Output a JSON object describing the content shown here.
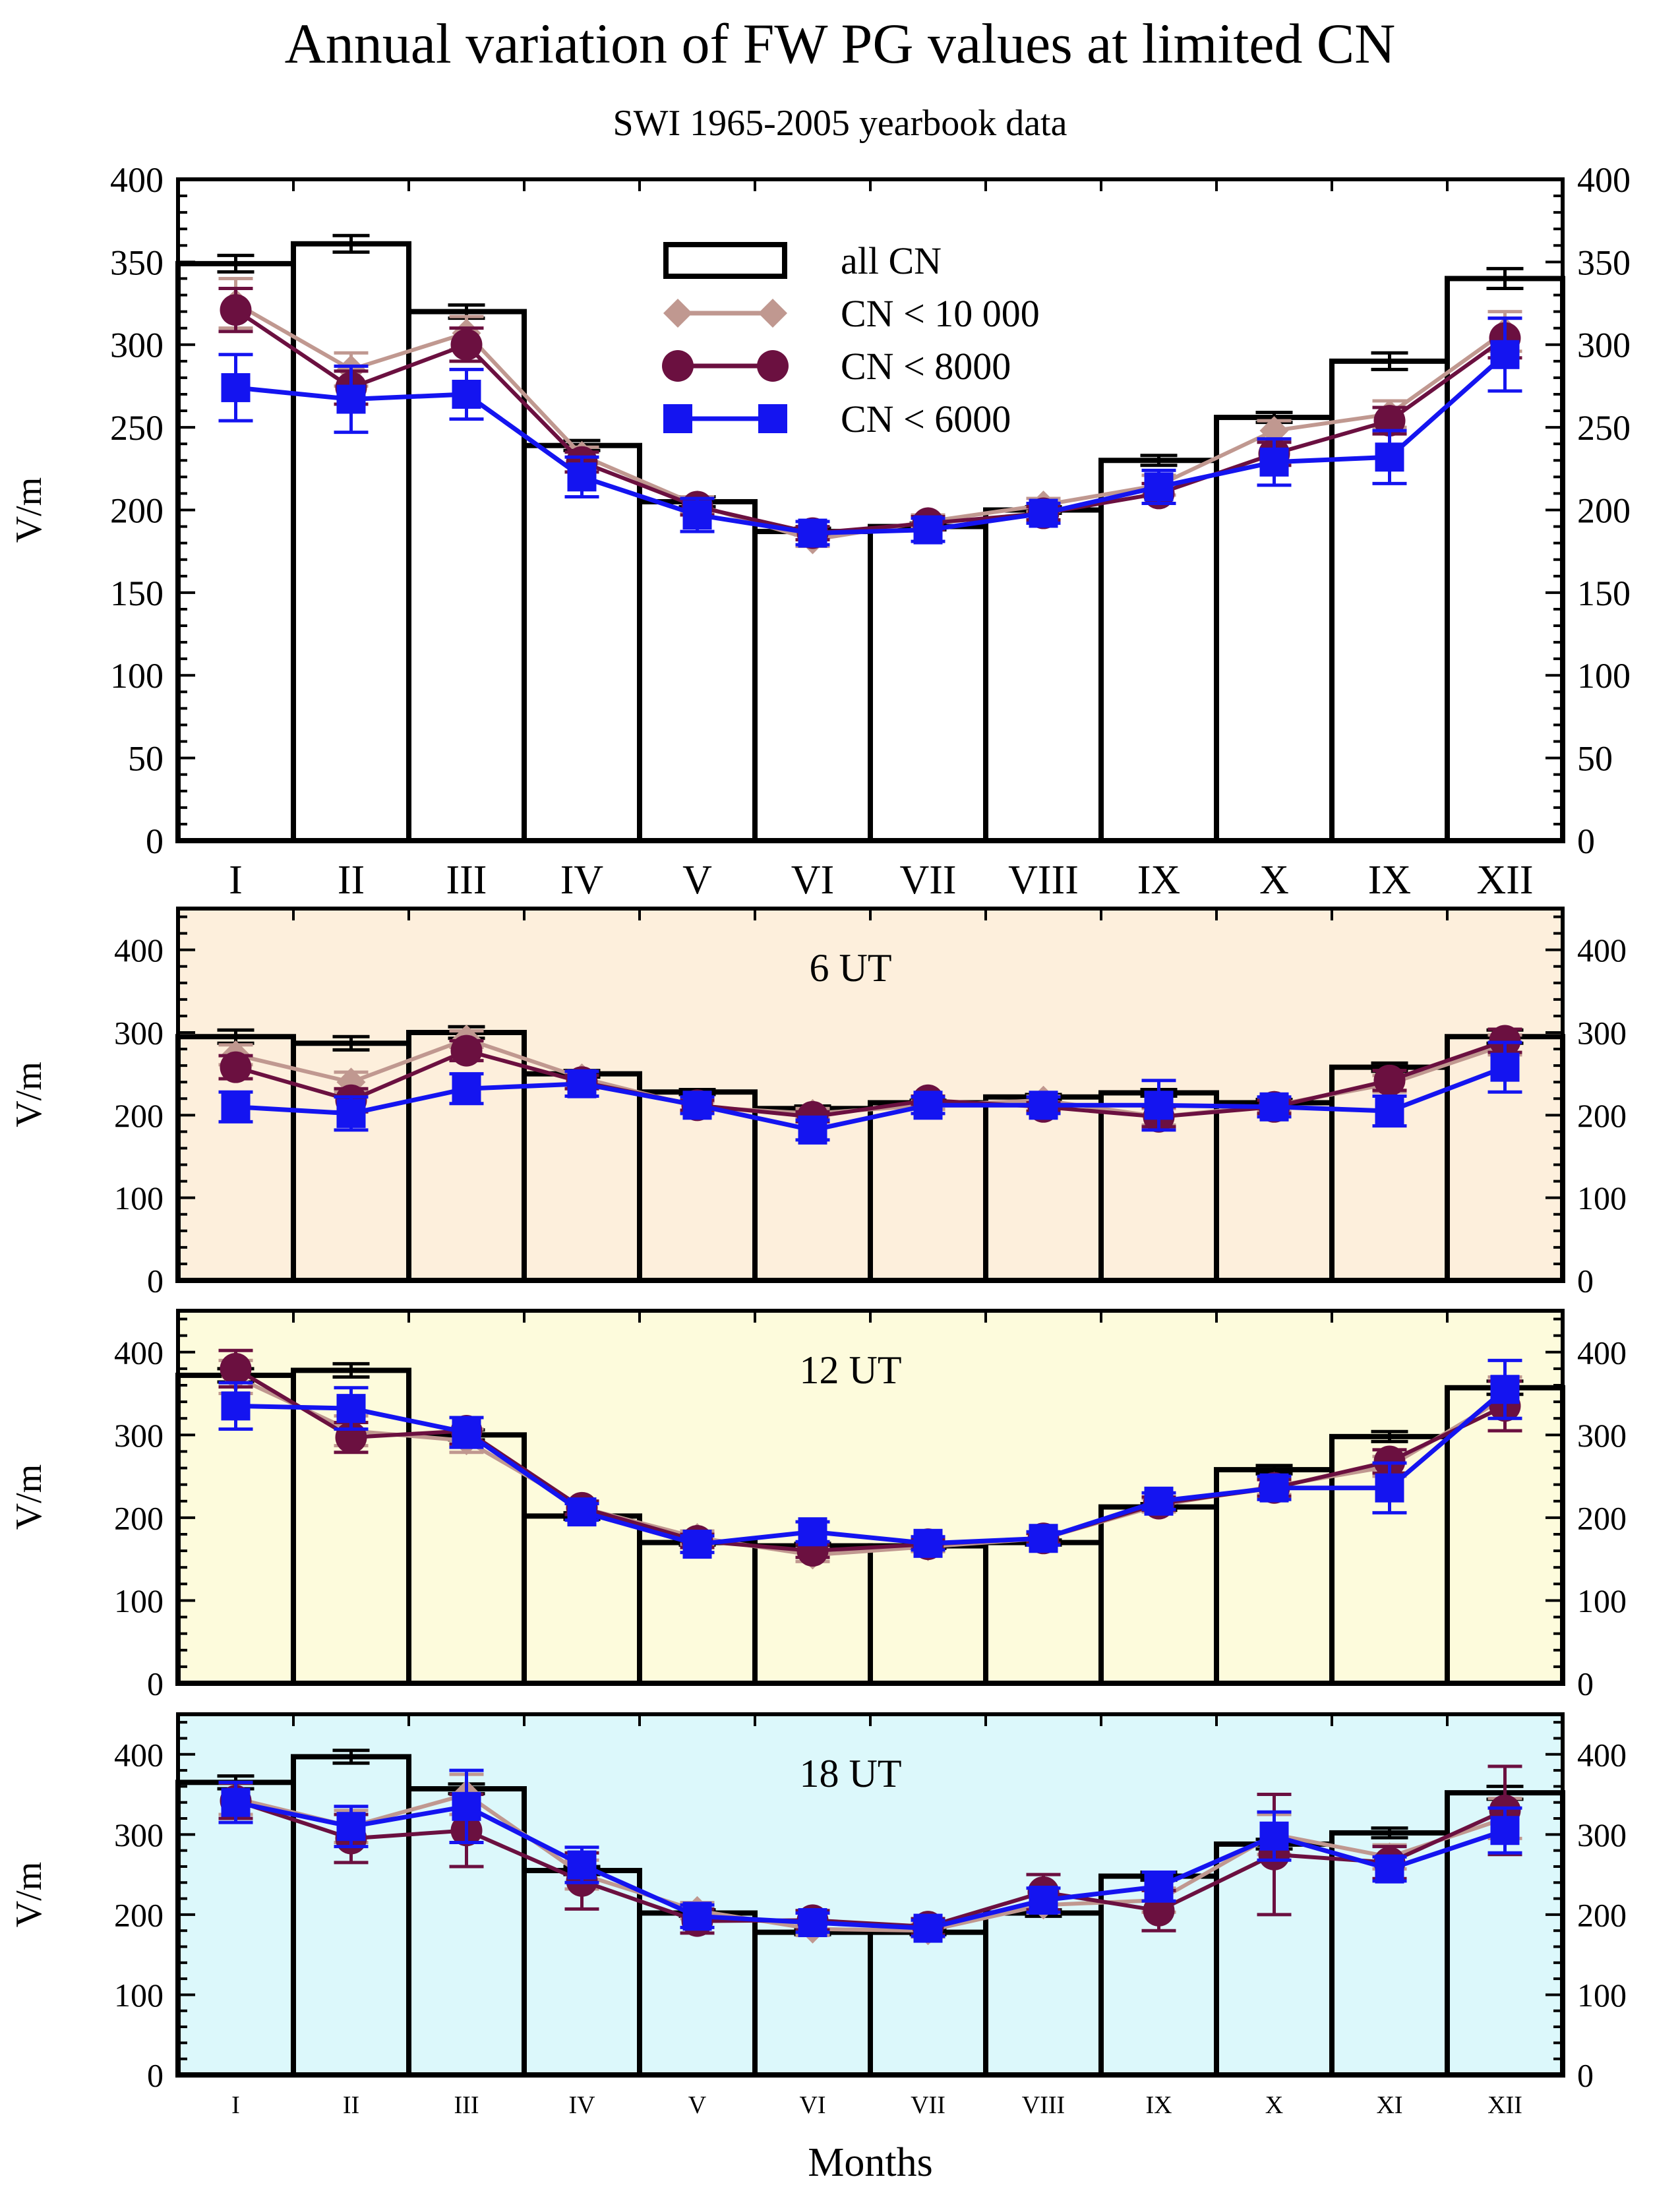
{
  "title": "Annual variation of FW PG values at limited CN",
  "subtitle": "SWI 1965-2005 yearbook data",
  "xlabel": "Months",
  "colors": {
    "cn10000": "#c09890",
    "cn8000": "#6b1040",
    "cn6000": "#1414f0",
    "bars": "#000000",
    "bg_6ut": "#fdefdc",
    "bg_12ut": "#fdfbdc",
    "bg_18ut": "#dcf8fb"
  },
  "chart_data": [
    {
      "type": "bar",
      "panel_label": "",
      "categories": [
        "I",
        "II",
        "III",
        "IV",
        "V",
        "VI",
        "VII",
        "VIII",
        "IX",
        "X",
        "IX",
        "XII"
      ],
      "ylabel": "V/m",
      "ylim": [
        0,
        400
      ],
      "yticks": [
        0,
        50,
        100,
        150,
        200,
        250,
        300,
        350,
        400
      ],
      "legend": {
        "placement": "top-center",
        "entries": [
          "all CN",
          "CN < 10 000",
          "CN < 8000",
          "CN < 6000"
        ]
      },
      "series": [
        {
          "name": "all CN",
          "kind": "bar",
          "values": [
            349,
            361,
            320,
            239,
            205,
            187,
            190,
            200,
            230,
            256,
            290,
            340
          ],
          "errors": [
            5,
            5,
            4,
            3,
            3,
            2,
            2,
            2,
            3,
            3,
            5,
            6
          ]
        },
        {
          "name": "CN < 10 000",
          "kind": "line",
          "values": [
            325,
            285,
            307,
            233,
            203,
            182,
            193,
            203,
            215,
            248,
            258,
            308
          ],
          "errors": [
            15,
            10,
            10,
            5,
            5,
            4,
            4,
            4,
            6,
            6,
            8,
            12
          ]
        },
        {
          "name": "CN < 8000",
          "kind": "line",
          "values": [
            321,
            274,
            300,
            229,
            202,
            186,
            192,
            198,
            210,
            234,
            254,
            304
          ],
          "errors": [
            13,
            10,
            10,
            6,
            5,
            4,
            4,
            4,
            6,
            7,
            8,
            12
          ]
        },
        {
          "name": "CN < 6000",
          "kind": "line",
          "values": [
            274,
            267,
            270,
            220,
            197,
            186,
            188,
            198,
            214,
            229,
            232,
            294
          ],
          "errors": [
            20,
            20,
            15,
            12,
            10,
            7,
            7,
            6,
            10,
            14,
            16,
            22
          ]
        }
      ]
    },
    {
      "type": "bar",
      "panel_label": "6 UT",
      "categories": [
        "I",
        "II",
        "III",
        "IV",
        "V",
        "VI",
        "VII",
        "VIII",
        "IX",
        "X",
        "XI",
        "XII"
      ],
      "ylabel": "V/m",
      "ylim": [
        0,
        450
      ],
      "yticks": [
        0,
        100,
        200,
        300,
        400
      ],
      "series": [
        {
          "name": "all CN",
          "kind": "bar",
          "values": [
            295,
            287,
            300,
            250,
            228,
            208,
            215,
            222,
            227,
            215,
            258,
            295
          ],
          "errors": [
            8,
            8,
            7,
            4,
            3,
            3,
            3,
            3,
            4,
            4,
            5,
            8
          ]
        },
        {
          "name": "CN < 10 000",
          "kind": "line",
          "values": [
            273,
            240,
            292,
            245,
            210,
            202,
            212,
            218,
            198,
            212,
            238,
            285
          ],
          "errors": [
            12,
            12,
            10,
            8,
            6,
            6,
            5,
            5,
            10,
            8,
            10,
            12
          ]
        },
        {
          "name": "CN < 8000",
          "kind": "line",
          "values": [
            258,
            218,
            278,
            240,
            212,
            198,
            218,
            210,
            198,
            210,
            242,
            290
          ],
          "errors": [
            14,
            14,
            12,
            8,
            6,
            6,
            5,
            5,
            12,
            8,
            12,
            14
          ]
        },
        {
          "name": "CN < 6000",
          "kind": "line",
          "values": [
            210,
            202,
            232,
            238,
            212,
            182,
            212,
            212,
            212,
            210,
            205,
            258
          ],
          "errors": [
            18,
            20,
            18,
            15,
            10,
            12,
            10,
            10,
            30,
            12,
            18,
            30
          ]
        }
      ]
    },
    {
      "type": "bar",
      "panel_label": "12 UT",
      "categories": [
        "I",
        "II",
        "III",
        "IV",
        "V",
        "VI",
        "VII",
        "VIII",
        "IX",
        "X",
        "XI",
        "XII"
      ],
      "ylabel": "V/m",
      "ylim": [
        0,
        450
      ],
      "yticks": [
        0,
        100,
        200,
        300,
        400
      ],
      "series": [
        {
          "name": "all CN",
          "kind": "bar",
          "values": [
            372,
            378,
            300,
            202,
            170,
            166,
            166,
            170,
            213,
            258,
            298,
            357
          ],
          "errors": [
            8,
            8,
            6,
            4,
            3,
            3,
            3,
            3,
            4,
            5,
            6,
            8
          ]
        },
        {
          "name": "CN < 10 000",
          "kind": "line",
          "values": [
            370,
            305,
            293,
            212,
            176,
            155,
            165,
            175,
            215,
            238,
            262,
            345
          ],
          "errors": [
            20,
            18,
            14,
            8,
            8,
            8,
            6,
            6,
            8,
            10,
            12,
            25
          ]
        },
        {
          "name": "CN < 8000",
          "kind": "line",
          "values": [
            380,
            297,
            305,
            212,
            172,
            160,
            168,
            175,
            217,
            236,
            268,
            335
          ],
          "errors": [
            22,
            18,
            16,
            8,
            8,
            8,
            6,
            6,
            8,
            10,
            14,
            30
          ]
        },
        {
          "name": "CN < 6000",
          "kind": "line",
          "values": [
            335,
            332,
            303,
            207,
            168,
            183,
            169,
            175,
            220,
            236,
            236,
            355
          ],
          "errors": [
            28,
            25,
            18,
            10,
            10,
            12,
            8,
            8,
            10,
            14,
            30,
            35
          ]
        }
      ]
    },
    {
      "type": "bar",
      "panel_label": "18 UT",
      "categories": [
        "I",
        "II",
        "III",
        "IV",
        "V",
        "VI",
        "VII",
        "VIII",
        "IX",
        "X",
        "XI",
        "XII"
      ],
      "ylabel": "V/m",
      "ylim": [
        0,
        450
      ],
      "yticks": [
        0,
        100,
        200,
        300,
        400
      ],
      "series": [
        {
          "name": "all CN",
          "kind": "bar",
          "values": [
            365,
            397,
            357,
            255,
            202,
            178,
            178,
            202,
            248,
            288,
            302,
            352
          ],
          "errors": [
            8,
            8,
            6,
            5,
            4,
            3,
            3,
            4,
            5,
            6,
            6,
            8
          ]
        },
        {
          "name": "CN < 10 000",
          "kind": "line",
          "values": [
            345,
            310,
            350,
            250,
            205,
            182,
            180,
            212,
            218,
            300,
            272,
            320
          ],
          "errors": [
            20,
            20,
            25,
            18,
            10,
            8,
            8,
            10,
            15,
            25,
            15,
            25
          ]
        },
        {
          "name": "CN < 8000",
          "kind": "line",
          "values": [
            342,
            295,
            305,
            242,
            192,
            193,
            185,
            228,
            205,
            275,
            265,
            330
          ],
          "errors": [
            22,
            30,
            45,
            35,
            15,
            12,
            10,
            22,
            25,
            75,
            20,
            55
          ]
        },
        {
          "name": "CN < 6000",
          "kind": "line",
          "values": [
            340,
            310,
            335,
            262,
            198,
            190,
            183,
            218,
            235,
            298,
            257,
            305
          ],
          "errors": [
            25,
            25,
            45,
            22,
            14,
            12,
            10,
            15,
            18,
            30,
            15,
            28
          ]
        }
      ]
    }
  ]
}
